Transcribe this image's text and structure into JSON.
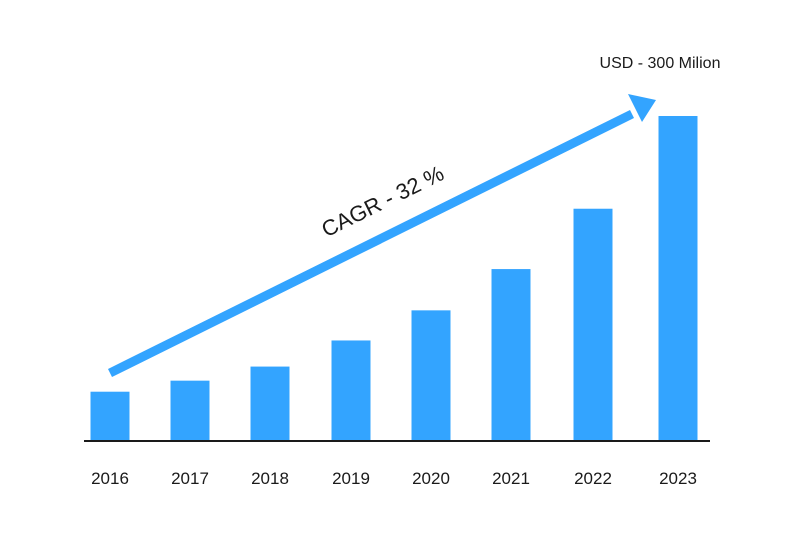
{
  "chart_data": {
    "type": "bar",
    "title": "",
    "xlabel": "",
    "ylabel": "",
    "ylim": [
      0,
      300
    ],
    "categories": [
      "2016",
      "2017",
      "2018",
      "2019",
      "2020",
      "2021",
      "2022",
      "2023"
    ],
    "values": [
      45.5,
      55.7,
      68.7,
      92.8,
      120.6,
      158.7,
      214.4,
      300
    ],
    "annotations": {
      "top_value_label": "USD - 300 Milion",
      "trend_label": "CAGR - 32 %"
    },
    "colors": {
      "bar": "#33a4ff",
      "arrow": "#33a4ff",
      "axis": "#1a1a1a",
      "text": "#1a1a1a"
    }
  }
}
